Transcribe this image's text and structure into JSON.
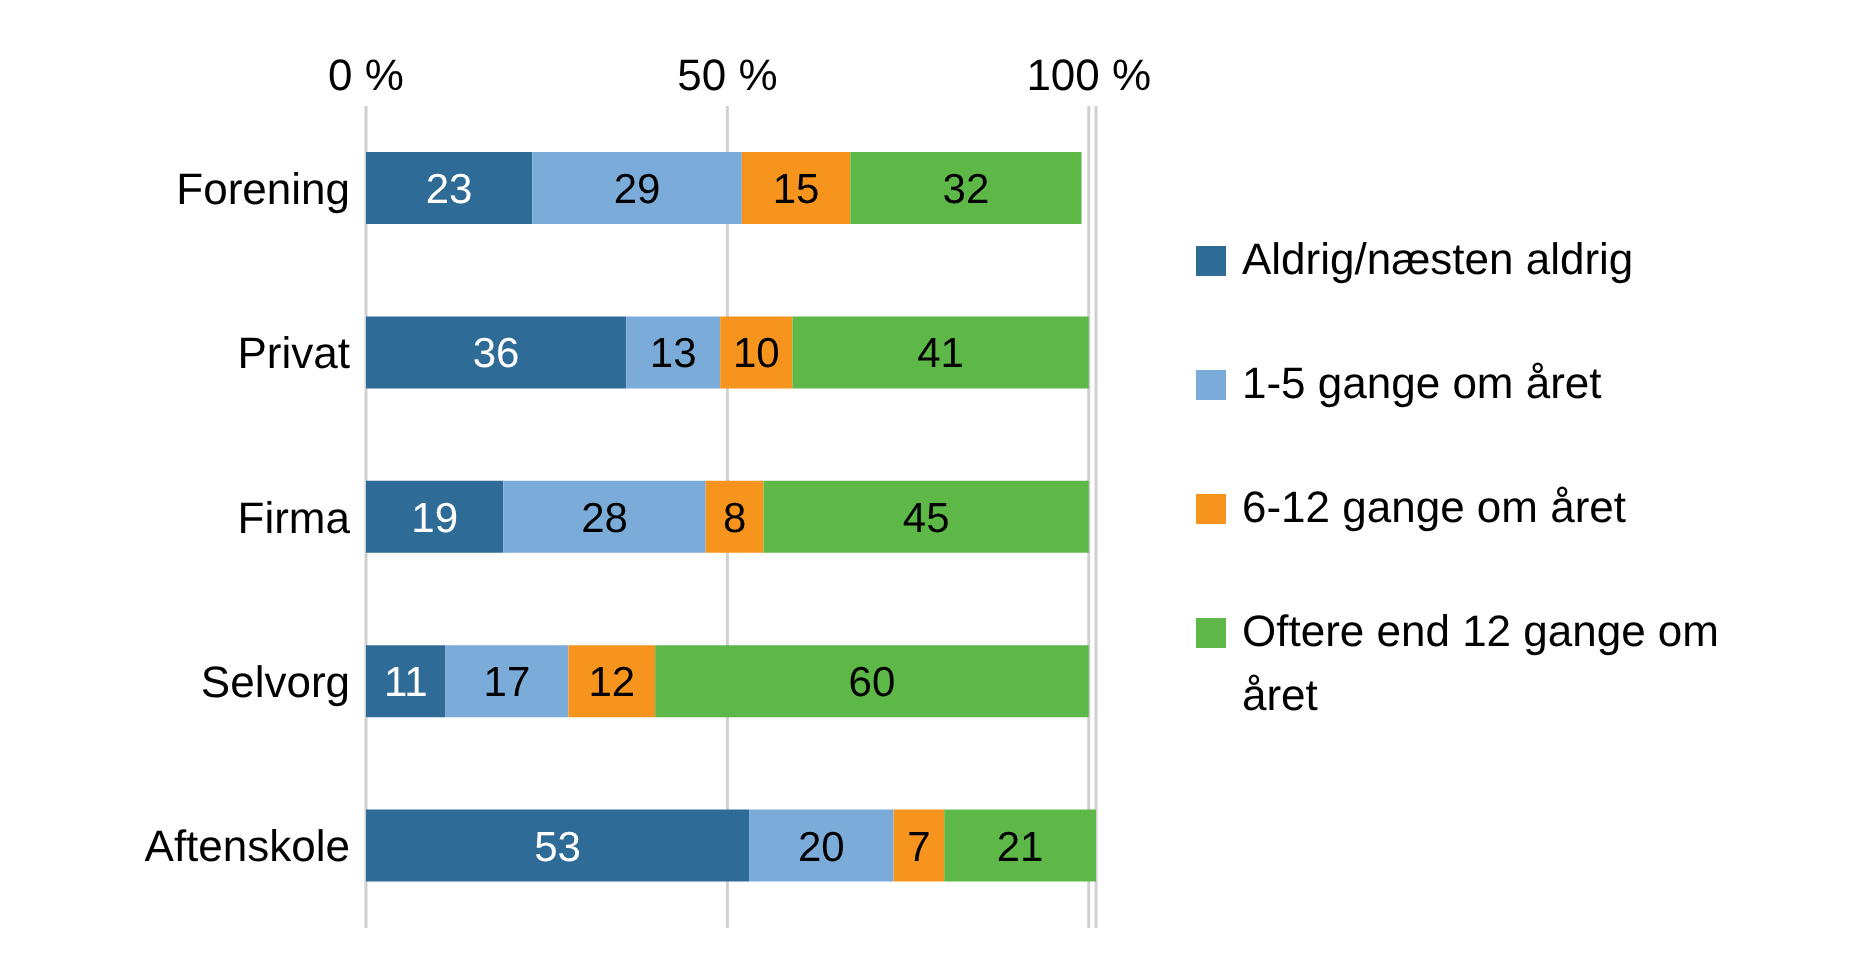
{
  "chart_data": {
    "type": "bar",
    "orientation": "horizontal",
    "stacked": true,
    "categories": [
      "Forening",
      "Privat",
      "Firma",
      "Selvorg",
      "Aftenskole"
    ],
    "series": [
      {
        "name": "Aldrig/næsten aldrig",
        "color": "#2e6b96",
        "values": [
          23,
          36,
          19,
          11,
          53
        ]
      },
      {
        "name": "1-5 gange om året",
        "color": "#7aabd9",
        "values": [
          29,
          13,
          28,
          17,
          20
        ]
      },
      {
        "name": "6-12 gange om året",
        "color": "#f7941d",
        "values": [
          15,
          10,
          8,
          12,
          7
        ]
      },
      {
        "name": "Oftere end 12 gange om året",
        "color": "#5db848",
        "values": [
          32,
          41,
          45,
          60,
          21
        ]
      }
    ],
    "xlim": [
      0,
      101
    ],
    "xticks": [
      {
        "value": 0,
        "label": "0 %"
      },
      {
        "value": 50,
        "label": "50 %"
      },
      {
        "value": 100,
        "label": "100 %"
      }
    ],
    "grid": "x",
    "legend": "right",
    "data_labels": true
  }
}
